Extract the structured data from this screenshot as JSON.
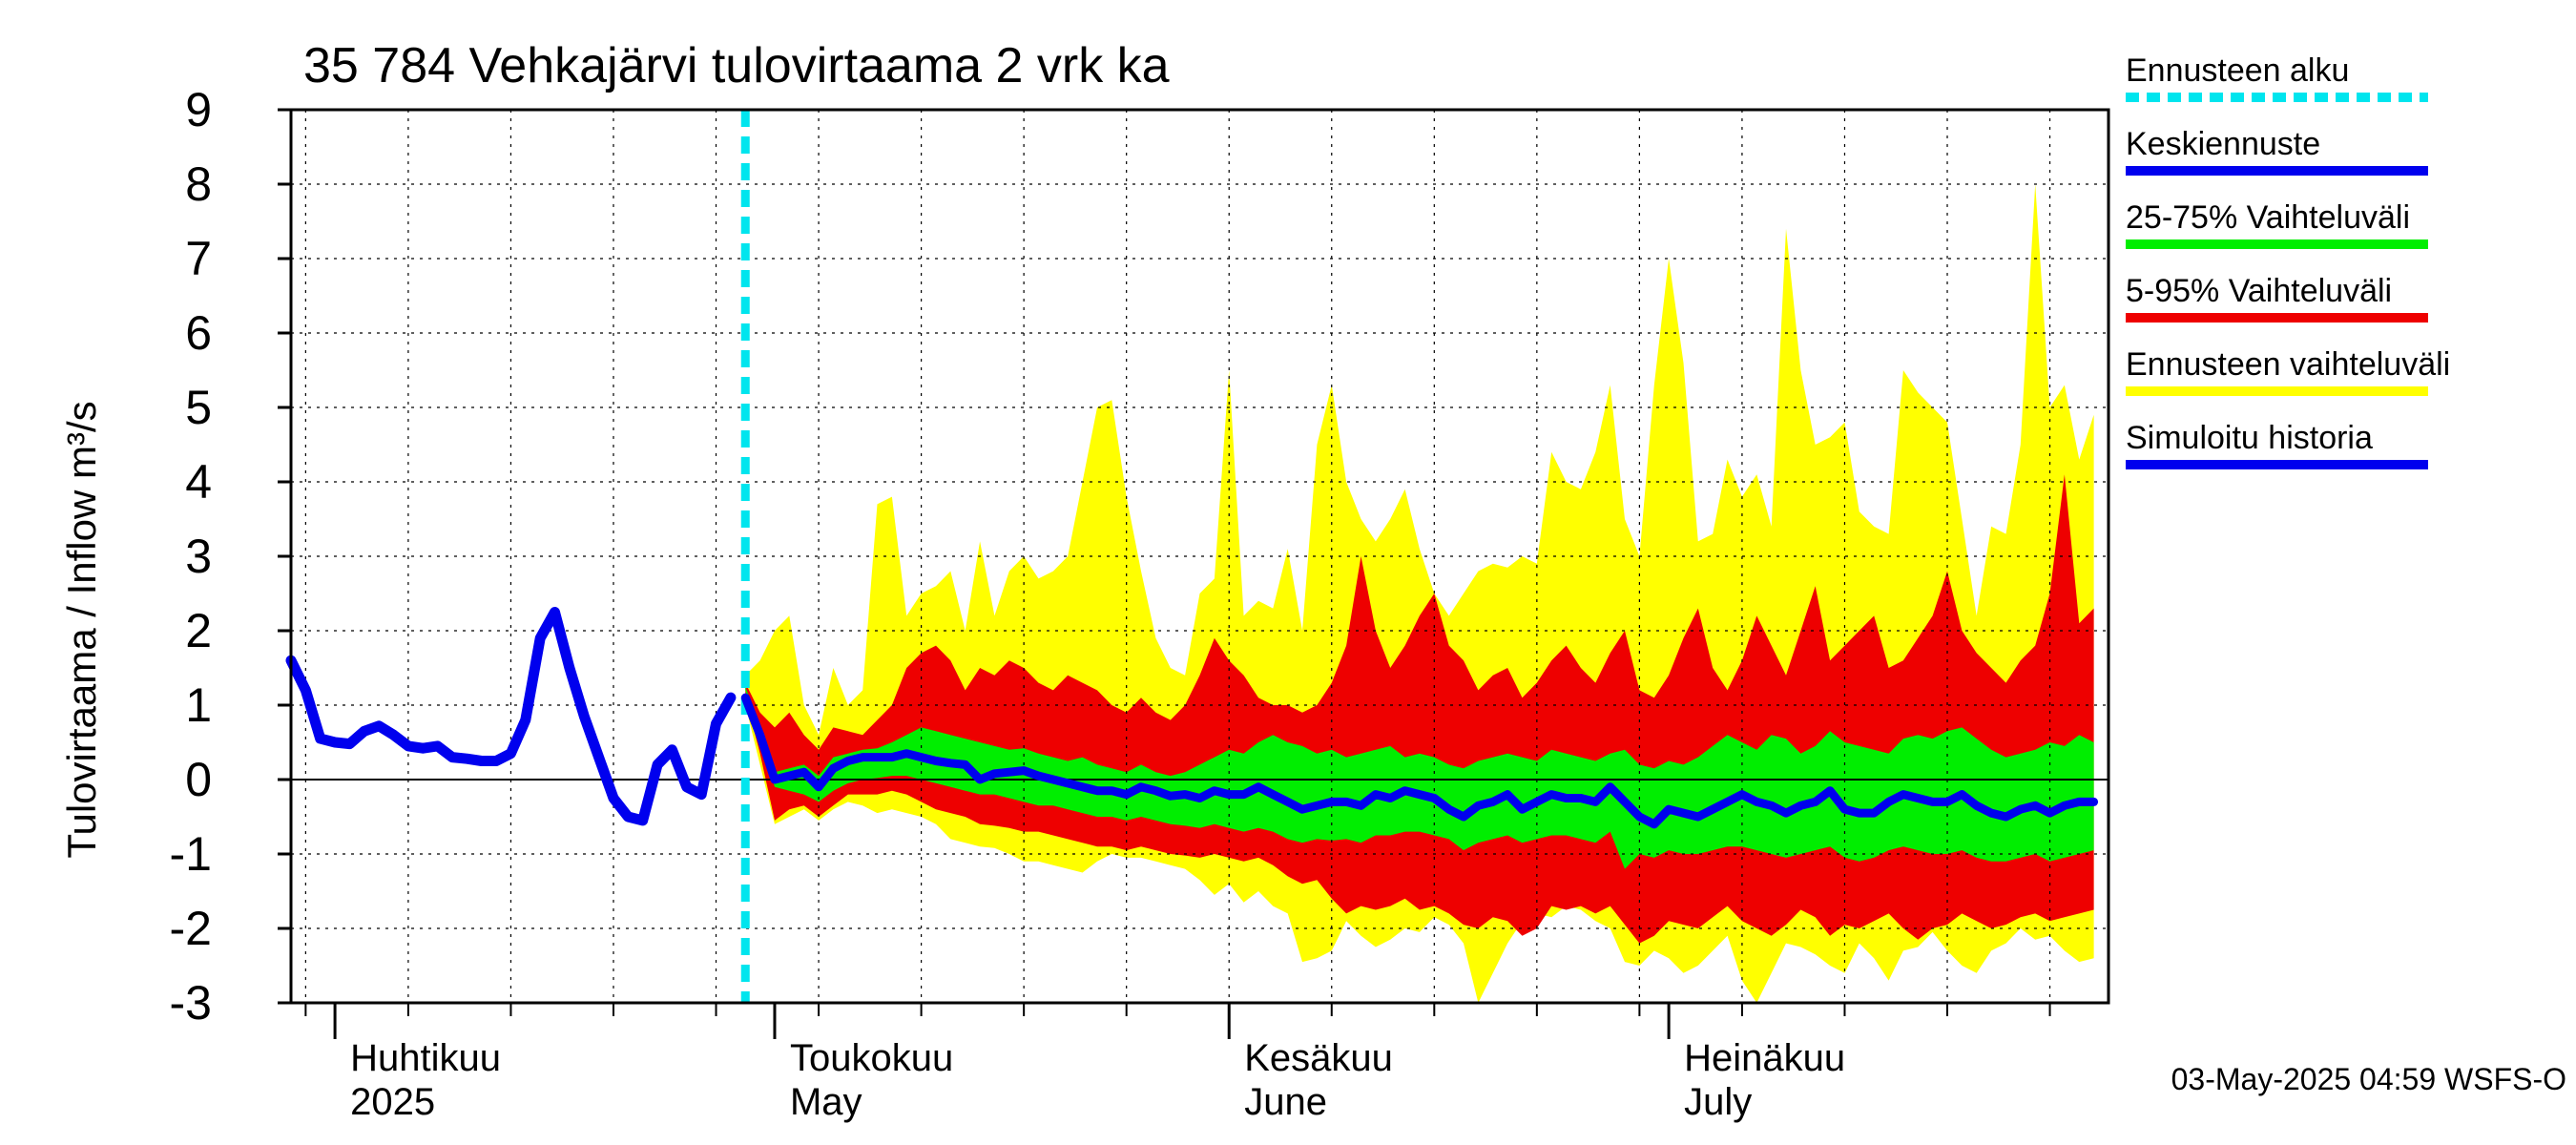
{
  "chart_data": {
    "type": "area",
    "title": "35 784 Vehkajärvi tulovirtaama 2 vrk ka",
    "ylabel": "Tulovirtaama / Inflow    m³/s",
    "ylim": [
      -3,
      9
    ],
    "yticks": [
      -3,
      -2,
      -1,
      0,
      1,
      2,
      3,
      4,
      5,
      6,
      7,
      8,
      9
    ],
    "xlim": [
      "2025-03-29",
      "2025-07-31"
    ],
    "month_labels": [
      {
        "line1": "Huhtikuu",
        "line2": "2025",
        "date": "2025-04-01"
      },
      {
        "line1": "Toukokuu",
        "line2": "May",
        "date": "2025-05-01"
      },
      {
        "line1": "Kesäkuu",
        "line2": "June",
        "date": "2025-06-01"
      },
      {
        "line1": "Heinäkuu",
        "line2": "July",
        "date": "2025-07-01"
      }
    ],
    "forecast_start": "2025-04-29",
    "grid": true,
    "legend_position": "right",
    "footer": "03-May-2025 04:59 WSFS-O",
    "legend": [
      {
        "label": "Ennusteen alku",
        "color": "#00e5ee",
        "style": "dashed"
      },
      {
        "label": "Keskiennuste",
        "color": "#0000ee",
        "style": "solid"
      },
      {
        "label": "25-75% Vaihteluväli",
        "color": "#00ee00",
        "style": "solid"
      },
      {
        "label": "5-95% Vaihteluväli",
        "color": "#ee0000",
        "style": "solid"
      },
      {
        "label": "Ennusteen vaihteluväli",
        "color": "#ffff00",
        "style": "solid"
      },
      {
        "label": "Simuloitu historia",
        "color": "#0000ee",
        "style": "solid"
      }
    ],
    "history": {
      "start": "2025-03-29",
      "step_days": 1,
      "values": [
        1.6,
        1.2,
        0.55,
        0.5,
        0.48,
        0.65,
        0.72,
        0.6,
        0.45,
        0.42,
        0.45,
        0.3,
        0.28,
        0.25,
        0.25,
        0.35,
        0.8,
        1.9,
        2.25,
        1.5,
        0.85,
        0.3,
        -0.25,
        -0.5,
        -0.55,
        0.2,
        0.4,
        -0.1,
        -0.2,
        0.75,
        1.1
      ]
    },
    "forecast": {
      "start": "2025-04-29",
      "step_days": 1,
      "median": [
        1.1,
        0.6,
        0.0,
        0.05,
        0.1,
        -0.1,
        0.15,
        0.25,
        0.3,
        0.3,
        0.3,
        0.35,
        0.3,
        0.25,
        0.22,
        0.2,
        0.0,
        0.08,
        0.1,
        0.12,
        0.05,
        0.0,
        -0.05,
        -0.1,
        -0.15,
        -0.15,
        -0.2,
        -0.1,
        -0.15,
        -0.22,
        -0.2,
        -0.25,
        -0.15,
        -0.2,
        -0.2,
        -0.1,
        -0.2,
        -0.3,
        -0.4,
        -0.35,
        -0.3,
        -0.3,
        -0.35,
        -0.2,
        -0.25,
        -0.15,
        -0.2,
        -0.25,
        -0.4,
        -0.5,
        -0.35,
        -0.3,
        -0.2,
        -0.4,
        -0.3,
        -0.2,
        -0.25,
        -0.25,
        -0.3,
        -0.1,
        -0.3,
        -0.5,
        -0.6,
        -0.4,
        -0.45,
        -0.5,
        -0.4,
        -0.3,
        -0.2,
        -0.3,
        -0.35,
        -0.45,
        -0.35,
        -0.3,
        -0.15,
        -0.4,
        -0.45,
        -0.45,
        -0.3,
        -0.2,
        -0.25,
        -0.3,
        -0.3,
        -0.2,
        -0.35,
        -0.45,
        -0.5,
        -0.4,
        -0.35,
        -0.45,
        -0.35,
        -0.3,
        -0.3
      ],
      "q25": [
        1.2,
        0.5,
        -0.1,
        -0.15,
        -0.2,
        -0.3,
        -0.15,
        -0.05,
        0.0,
        0.02,
        0.05,
        0.05,
        0.0,
        -0.05,
        -0.1,
        -0.15,
        -0.2,
        -0.2,
        -0.25,
        -0.3,
        -0.35,
        -0.35,
        -0.4,
        -0.45,
        -0.5,
        -0.5,
        -0.55,
        -0.5,
        -0.55,
        -0.6,
        -0.62,
        -0.65,
        -0.6,
        -0.65,
        -0.7,
        -0.65,
        -0.7,
        -0.8,
        -0.85,
        -0.8,
        -0.82,
        -0.8,
        -0.85,
        -0.75,
        -0.75,
        -0.7,
        -0.7,
        -0.75,
        -0.8,
        -0.95,
        -0.85,
        -0.8,
        -0.75,
        -0.85,
        -0.8,
        -0.75,
        -0.75,
        -0.8,
        -0.85,
        -0.7,
        -1.2,
        -1.0,
        -1.05,
        -0.95,
        -1.0,
        -1.0,
        -0.95,
        -0.9,
        -0.9,
        -0.95,
        -1.0,
        -1.05,
        -1.0,
        -0.95,
        -0.9,
        -1.05,
        -1.1,
        -1.05,
        -0.95,
        -0.9,
        -0.95,
        -1.0,
        -1.0,
        -0.95,
        -1.05,
        -1.1,
        -1.1,
        -1.05,
        -1.0,
        -1.1,
        -1.05,
        -1.0,
        -0.95
      ],
      "q75": [
        1.25,
        0.7,
        0.1,
        0.15,
        0.2,
        0.05,
        0.3,
        0.35,
        0.4,
        0.42,
        0.5,
        0.6,
        0.7,
        0.65,
        0.6,
        0.55,
        0.5,
        0.45,
        0.4,
        0.42,
        0.35,
        0.3,
        0.25,
        0.3,
        0.2,
        0.15,
        0.1,
        0.2,
        0.1,
        0.05,
        0.1,
        0.2,
        0.3,
        0.4,
        0.35,
        0.5,
        0.6,
        0.5,
        0.45,
        0.35,
        0.4,
        0.3,
        0.35,
        0.4,
        0.45,
        0.3,
        0.35,
        0.3,
        0.2,
        0.15,
        0.25,
        0.3,
        0.35,
        0.3,
        0.25,
        0.4,
        0.35,
        0.3,
        0.25,
        0.35,
        0.4,
        0.2,
        0.15,
        0.25,
        0.2,
        0.3,
        0.45,
        0.6,
        0.5,
        0.4,
        0.6,
        0.55,
        0.35,
        0.45,
        0.65,
        0.5,
        0.45,
        0.4,
        0.35,
        0.55,
        0.6,
        0.55,
        0.65,
        0.7,
        0.55,
        0.4,
        0.3,
        0.35,
        0.4,
        0.5,
        0.45,
        0.6,
        0.5
      ],
      "q05": [
        1.1,
        0.35,
        -0.55,
        -0.4,
        -0.35,
        -0.5,
        -0.35,
        -0.2,
        -0.2,
        -0.2,
        -0.15,
        -0.2,
        -0.3,
        -0.4,
        -0.45,
        -0.5,
        -0.6,
        -0.62,
        -0.65,
        -0.7,
        -0.7,
        -0.75,
        -0.8,
        -0.85,
        -0.9,
        -0.9,
        -0.95,
        -0.9,
        -0.95,
        -1.0,
        -1.02,
        -1.05,
        -1.0,
        -1.05,
        -1.1,
        -1.05,
        -1.15,
        -1.3,
        -1.4,
        -1.35,
        -1.6,
        -1.8,
        -1.7,
        -1.75,
        -1.7,
        -1.6,
        -1.75,
        -1.7,
        -1.8,
        -1.95,
        -2.0,
        -1.85,
        -1.9,
        -2.1,
        -2.0,
        -1.7,
        -1.75,
        -1.7,
        -1.8,
        -1.7,
        -1.95,
        -2.2,
        -2.1,
        -1.9,
        -1.95,
        -2.0,
        -1.85,
        -1.7,
        -1.9,
        -2.0,
        -2.1,
        -1.95,
        -1.75,
        -1.85,
        -2.1,
        -1.95,
        -2.0,
        -1.9,
        -1.8,
        -2.0,
        -2.15,
        -2.0,
        -1.95,
        -1.8,
        -1.9,
        -2.0,
        -1.95,
        -1.85,
        -1.8,
        -1.9,
        -1.85,
        -1.8,
        -1.75
      ],
      "q95": [
        1.3,
        0.9,
        0.7,
        0.9,
        0.6,
        0.4,
        0.7,
        0.65,
        0.6,
        0.8,
        1.0,
        1.5,
        1.7,
        1.8,
        1.6,
        1.2,
        1.5,
        1.4,
        1.6,
        1.5,
        1.3,
        1.2,
        1.4,
        1.3,
        1.2,
        1.0,
        0.9,
        1.1,
        0.9,
        0.8,
        1.0,
        1.4,
        1.9,
        1.6,
        1.4,
        1.1,
        1.0,
        1.0,
        0.9,
        1.0,
        1.3,
        1.8,
        3.0,
        2.0,
        1.5,
        1.8,
        2.2,
        2.5,
        1.8,
        1.6,
        1.2,
        1.4,
        1.5,
        1.1,
        1.3,
        1.6,
        1.8,
        1.5,
        1.3,
        1.7,
        2.0,
        1.2,
        1.1,
        1.4,
        1.9,
        2.3,
        1.5,
        1.2,
        1.6,
        2.2,
        1.8,
        1.4,
        2.0,
        2.6,
        1.6,
        1.8,
        2.0,
        2.2,
        1.5,
        1.6,
        1.9,
        2.2,
        2.8,
        2.0,
        1.7,
        1.5,
        1.3,
        1.6,
        1.8,
        2.5,
        4.1,
        2.1,
        2.3
      ],
      "min": [
        1.0,
        0.2,
        -0.6,
        -0.5,
        -0.4,
        -0.55,
        -0.4,
        -0.3,
        -0.35,
        -0.45,
        -0.4,
        -0.45,
        -0.5,
        -0.6,
        -0.8,
        -0.85,
        -0.9,
        -0.92,
        -1.0,
        -1.1,
        -1.1,
        -1.15,
        -1.2,
        -1.25,
        -1.1,
        -1.0,
        -1.05,
        -1.05,
        -1.1,
        -1.15,
        -1.2,
        -1.35,
        -1.55,
        -1.4,
        -1.65,
        -1.5,
        -1.7,
        -1.8,
        -2.45,
        -2.4,
        -2.3,
        -1.9,
        -2.1,
        -2.25,
        -2.15,
        -2.0,
        -2.05,
        -1.85,
        -1.95,
        -2.2,
        -3.0,
        -2.6,
        -2.2,
        -1.9,
        -1.8,
        -1.85,
        -1.7,
        -1.75,
        -1.9,
        -2.0,
        -2.45,
        -2.5,
        -2.3,
        -2.4,
        -2.6,
        -2.5,
        -2.3,
        -2.1,
        -2.7,
        -3.0,
        -2.6,
        -2.2,
        -2.25,
        -2.35,
        -2.5,
        -2.6,
        -2.2,
        -2.4,
        -2.7,
        -2.3,
        -2.25,
        -2.05,
        -2.3,
        -2.5,
        -2.6,
        -2.3,
        -2.2,
        -2.0,
        -2.15,
        -2.1,
        -2.3,
        -2.45,
        -2.4
      ],
      "max": [
        1.4,
        1.6,
        2.0,
        2.2,
        1.0,
        0.6,
        1.5,
        1.0,
        1.2,
        3.7,
        3.8,
        2.2,
        2.5,
        2.6,
        2.8,
        2.0,
        3.2,
        2.2,
        2.8,
        3.0,
        2.7,
        2.8,
        3.0,
        4.0,
        5.0,
        5.1,
        3.8,
        2.8,
        1.9,
        1.5,
        1.4,
        2.5,
        2.7,
        5.5,
        2.2,
        2.4,
        2.3,
        3.1,
        2.0,
        4.5,
        5.3,
        4.0,
        3.5,
        3.2,
        3.5,
        3.9,
        3.1,
        2.5,
        2.2,
        2.5,
        2.8,
        2.9,
        2.85,
        3.0,
        2.9,
        4.4,
        4.0,
        3.9,
        4.4,
        5.3,
        3.5,
        3.0,
        5.3,
        7.0,
        5.6,
        3.2,
        3.3,
        4.3,
        3.8,
        4.1,
        3.4,
        7.4,
        5.5,
        4.5,
        4.6,
        4.8,
        3.6,
        3.4,
        3.3,
        5.5,
        5.2,
        5.0,
        4.8,
        3.5,
        2.2,
        3.4,
        3.3,
        4.5,
        8.0,
        5.0,
        5.3,
        4.3,
        4.9
      ]
    }
  }
}
